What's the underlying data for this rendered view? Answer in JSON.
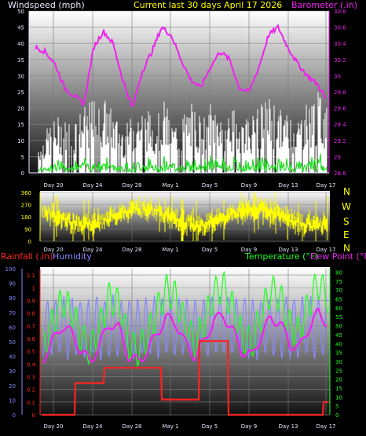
{
  "header": {
    "left": "Windspeed (mph)",
    "center": "Current last 30 days April 17 2026",
    "right": "Barometer (.in)"
  },
  "colors": {
    "wind_gust": "#ffffff",
    "wind_avg": "#22dd22",
    "barometer": "#ee22ee",
    "direction": "#ffff00",
    "rainfall": "#ff2222",
    "humidity": "#8888ff",
    "temperature": "#22ff22",
    "dewpoint": "#ee22ee"
  },
  "chart_data": [
    {
      "type": "area",
      "name": "wind-barometer",
      "x_ticks": [
        "Day 20",
        "Day 24",
        "Day 28",
        "May 1",
        "Day 5",
        "Day 9",
        "Day 13",
        "Day 17"
      ],
      "left_axis": {
        "label": "Windspeed (mph)",
        "ylim": [
          0,
          50
        ],
        "ticks": [
          0,
          5,
          10,
          15,
          20,
          25,
          30,
          35,
          40,
          45,
          50
        ]
      },
      "right_axis": {
        "label": "Barometer (.in)",
        "ylim": [
          28.8,
          30.8
        ],
        "ticks": [
          "28.8",
          "29",
          "29.2",
          "29.4",
          "29.6",
          "29.8",
          "30",
          "30.2",
          "30.4",
          "30.6",
          "30.8"
        ]
      },
      "barometer_daily": [
        30.35,
        30.3,
        30.15,
        29.85,
        29.75,
        29.65,
        30.35,
        30.55,
        30.4,
        29.95,
        29.6,
        30.05,
        30.3,
        30.6,
        30.5,
        30.2,
        29.95,
        29.85,
        30.1,
        30.3,
        30.2,
        29.85,
        29.8,
        30.1,
        30.5,
        30.6,
        30.35,
        30.15,
        30.0,
        29.9,
        29.7
      ],
      "wind_gust_daily": [
        9,
        13,
        16,
        15,
        17,
        19,
        22,
        21,
        16,
        13,
        18,
        19,
        16,
        21,
        14,
        17,
        20,
        16,
        21,
        19,
        18,
        17,
        16,
        19,
        22,
        18,
        17,
        16,
        21,
        23,
        19
      ]
    },
    {
      "type": "scatter",
      "name": "wind-direction",
      "left_ticks": [
        0,
        90,
        180,
        270,
        360
      ],
      "right_labels": [
        "N",
        "W",
        "S",
        "E",
        "N"
      ],
      "x_ticks": [
        "Day 20",
        "Day 24",
        "Day 28",
        "May 1",
        "Day 5",
        "Day 9",
        "Day 13",
        "Day 17"
      ]
    },
    {
      "type": "line",
      "name": "rain-humidity-temp",
      "legend_left": [
        "Rainfall (.in)",
        "Humidity"
      ],
      "legend_right": [
        "Temperature (°F)",
        "Dew Point (°F)"
      ],
      "humidity_ticks": [
        0,
        10,
        20,
        30,
        40,
        50,
        60,
        70,
        80,
        90,
        100
      ],
      "rain_ticks": [
        "0",
        "0.1",
        "0.2",
        "0.3",
        "0.4",
        "0.5",
        "0.6",
        "0.7",
        "0.8",
        "0.9",
        "1",
        "1.1"
      ],
      "temp_ticks": [
        0,
        5,
        10,
        15,
        20,
        25,
        30,
        35,
        40,
        45,
        50,
        55,
        60,
        65,
        70,
        75,
        80
      ],
      "x_ticks": [
        "Day 20",
        "Day 24",
        "Day 28",
        "May 1",
        "Day 5",
        "Day 9",
        "Day 13",
        "Day 17"
      ],
      "rain_cumulative_daily": [
        0,
        0,
        0,
        0,
        0.25,
        0.25,
        0.25,
        0.37,
        0.37,
        0.37,
        0.37,
        0.37,
        0.37,
        0.12,
        0.12,
        0.12,
        0.12,
        0.58,
        0.58,
        0.58,
        0,
        0,
        0,
        0,
        0,
        0,
        0,
        0,
        0,
        0,
        0.1
      ],
      "temp_daily": [
        38,
        52,
        64,
        58,
        44,
        36,
        50,
        66,
        62,
        40,
        36,
        44,
        58,
        70,
        66,
        50,
        40,
        52,
        68,
        72,
        60,
        44,
        40,
        56,
        70,
        66,
        50,
        46,
        62,
        74,
        66
      ]
    }
  ]
}
